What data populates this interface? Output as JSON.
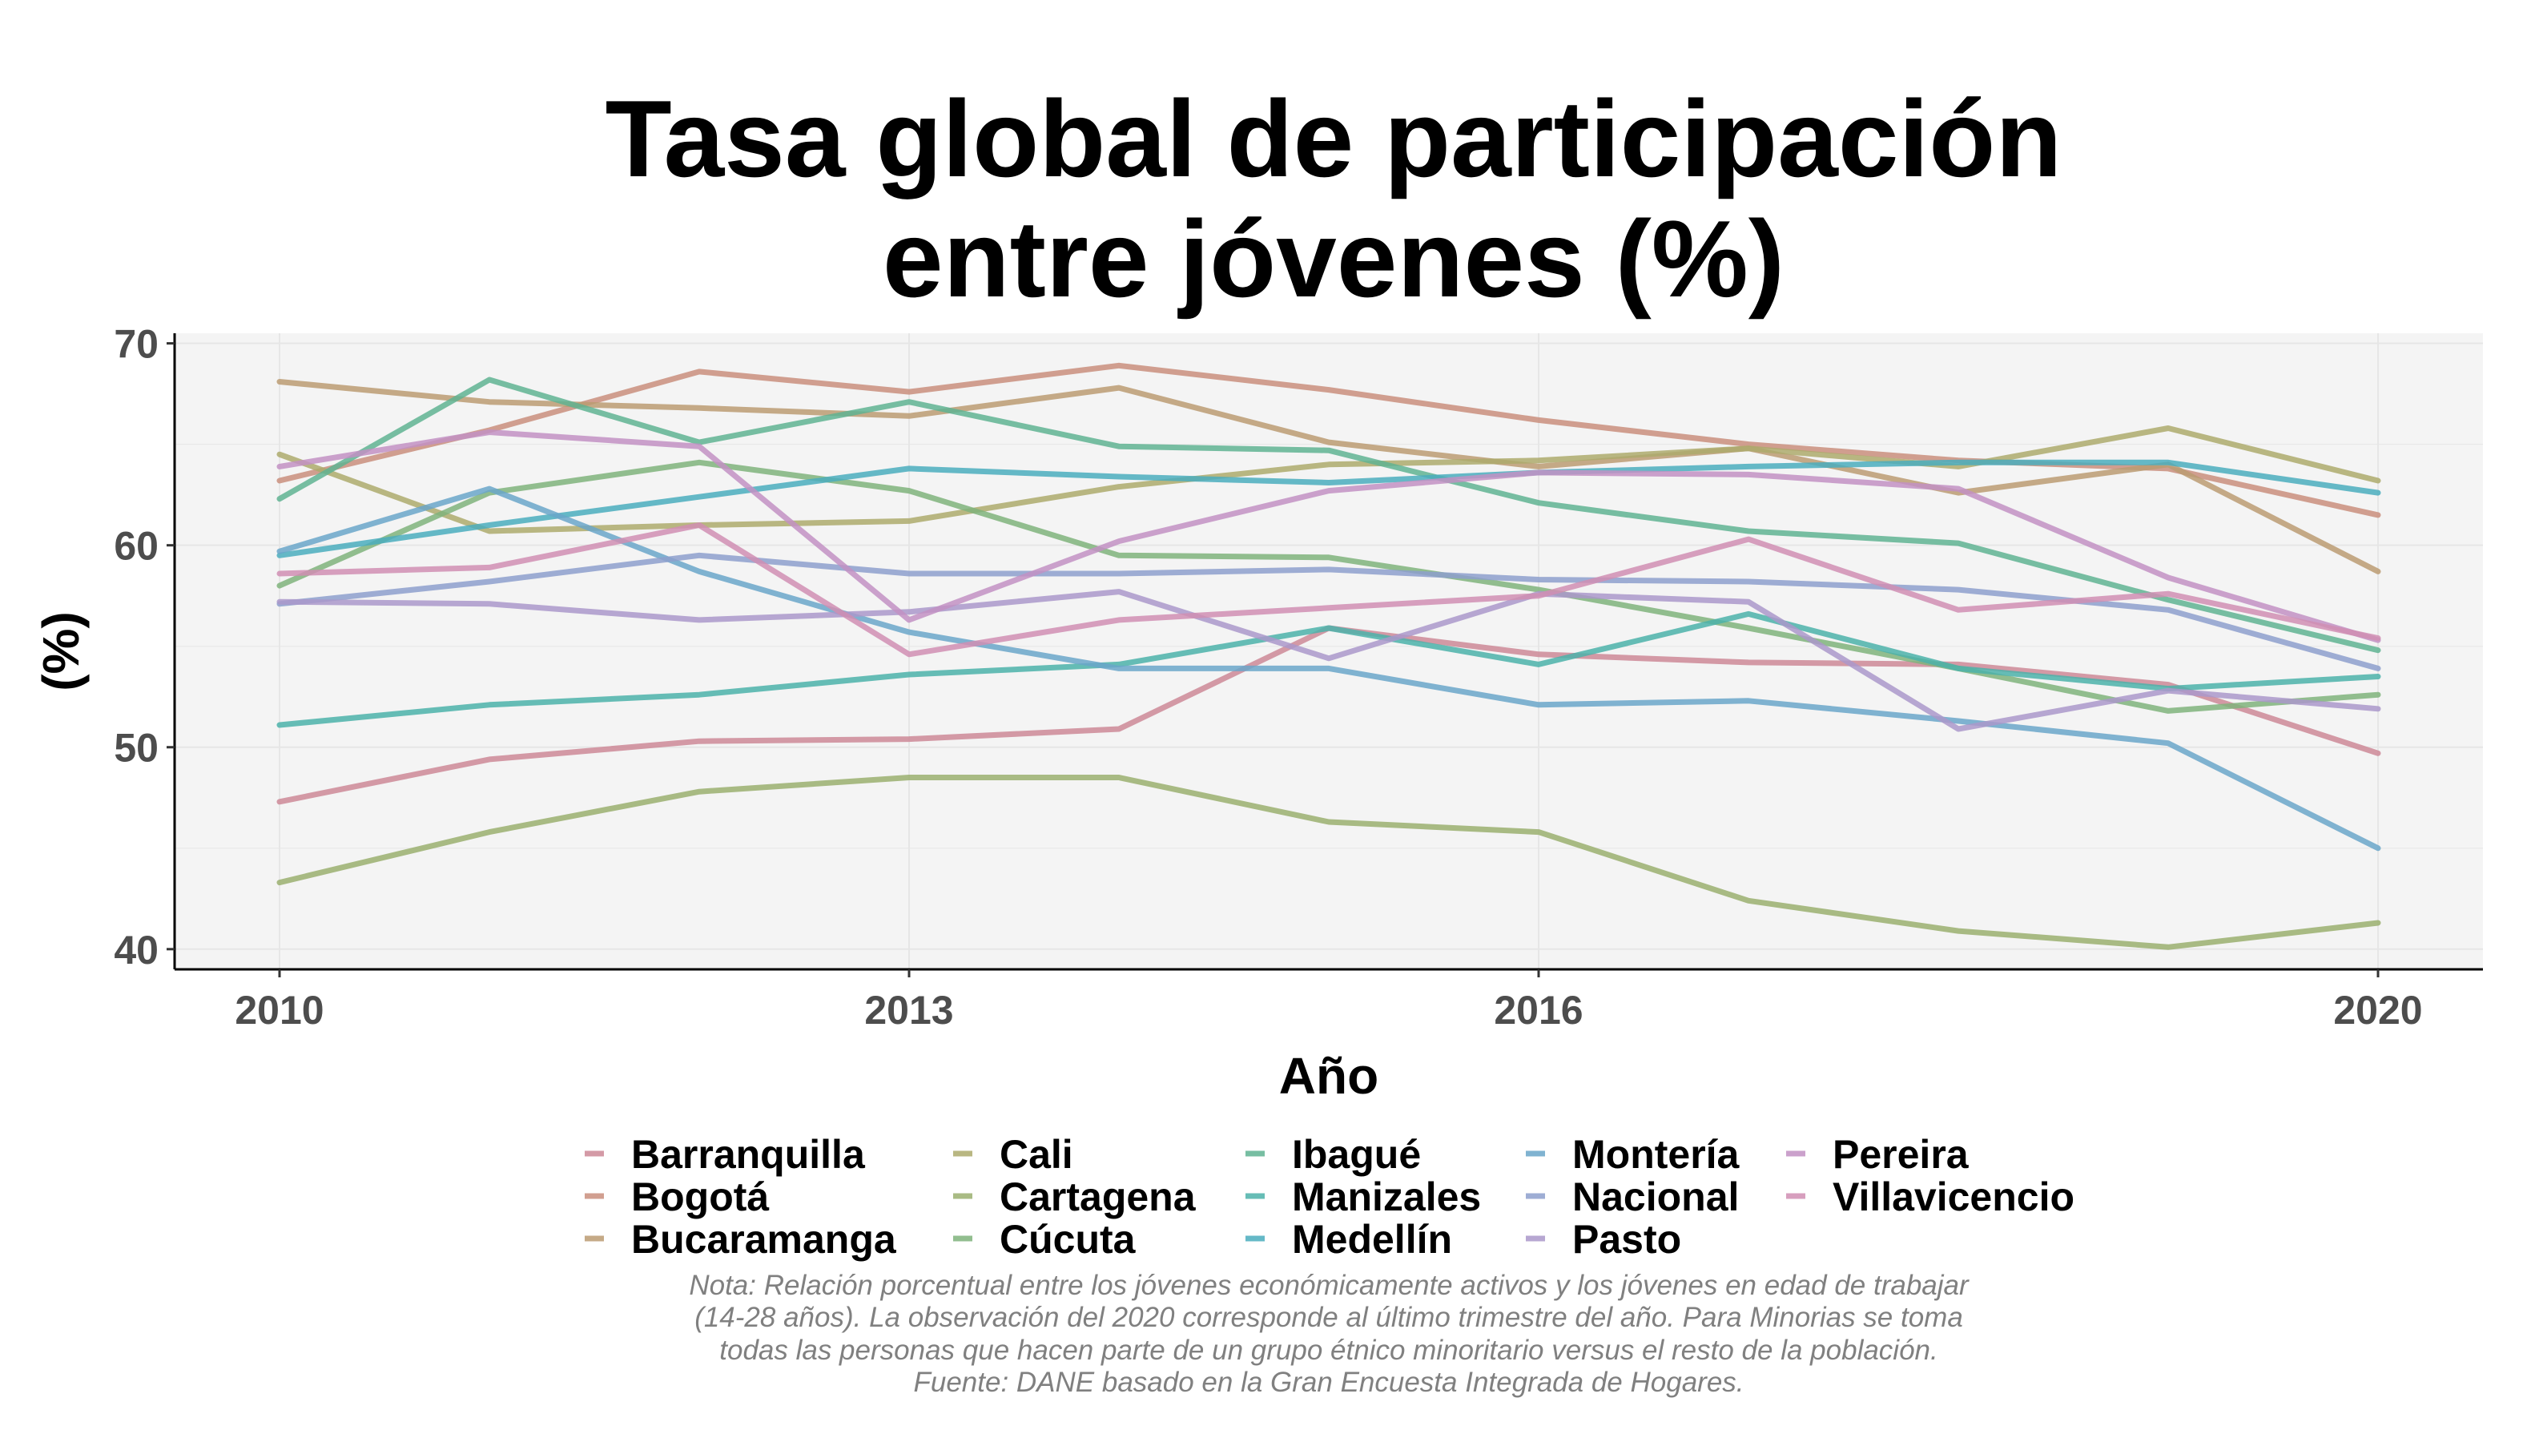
{
  "chart_data": {
    "type": "line",
    "title_lines": [
      "Tasa global de participación",
      "entre jóvenes (%)"
    ],
    "xlabel": "Año",
    "ylabel": "(%)",
    "xlim": [
      2009.5,
      2020.5
    ],
    "ylim": [
      39,
      70.5
    ],
    "x_ticks": [
      2010,
      2013,
      2016,
      2020
    ],
    "y_ticks": [
      40,
      50,
      60,
      70
    ],
    "x": [
      2010,
      2011,
      2012,
      2013,
      2014,
      2015,
      2016,
      2017,
      2018,
      2019,
      2020
    ],
    "grid": true,
    "legend_position": "bottom",
    "series": [
      {
        "name": "Barranquilla",
        "color": "#cc8896",
        "values": [
          47.3,
          49.4,
          50.3,
          50.4,
          50.9,
          55.9,
          54.6,
          54.2,
          54.1,
          53.1,
          49.7
        ]
      },
      {
        "name": "Bogotá",
        "color": "#c98e7c",
        "values": [
          63.2,
          65.7,
          68.6,
          67.6,
          68.9,
          67.7,
          66.2,
          65.0,
          64.2,
          63.8,
          61.5
        ]
      },
      {
        "name": "Bucaramanga",
        "color": "#bb9b72",
        "values": [
          68.1,
          67.1,
          66.8,
          66.4,
          67.8,
          65.1,
          63.9,
          64.8,
          62.6,
          64.0,
          58.7
        ]
      },
      {
        "name": "Cali",
        "color": "#adaa6c",
        "values": [
          64.5,
          60.7,
          61.0,
          61.2,
          62.9,
          64.0,
          64.2,
          64.8,
          63.9,
          65.8,
          63.2
        ]
      },
      {
        "name": "Cartagena",
        "color": "#9aaf6e",
        "values": [
          43.3,
          45.8,
          47.8,
          48.5,
          48.5,
          46.3,
          45.8,
          42.4,
          40.9,
          40.1,
          41.3
        ]
      },
      {
        "name": "Cúcuta",
        "color": "#7fb37b",
        "values": [
          58.0,
          62.6,
          64.1,
          62.7,
          59.5,
          59.4,
          57.8,
          55.9,
          53.9,
          51.8,
          52.6
        ]
      },
      {
        "name": "Ibagué",
        "color": "#5fb392",
        "values": [
          62.3,
          68.2,
          65.1,
          67.1,
          64.9,
          64.7,
          62.1,
          60.7,
          60.1,
          57.3,
          54.8
        ]
      },
      {
        "name": "Manizales",
        "color": "#4bb2a9",
        "values": [
          51.1,
          52.1,
          52.6,
          53.6,
          54.1,
          55.9,
          54.1,
          56.6,
          53.9,
          52.9,
          53.5
        ]
      },
      {
        "name": "Medellín",
        "color": "#4aadbd",
        "values": [
          59.5,
          61.0,
          62.4,
          63.8,
          63.4,
          63.1,
          63.6,
          63.9,
          64.1,
          64.1,
          62.6
        ]
      },
      {
        "name": "Montería",
        "color": "#6aa6c9",
        "values": [
          59.7,
          62.8,
          58.7,
          55.7,
          53.9,
          53.9,
          52.1,
          52.3,
          51.3,
          50.2,
          45.0
        ]
      },
      {
        "name": "Nacional",
        "color": "#8d9fcc",
        "values": [
          57.1,
          58.2,
          59.5,
          58.6,
          58.6,
          58.8,
          58.3,
          58.2,
          57.8,
          56.8,
          53.9
        ]
      },
      {
        "name": "Pasto",
        "color": "#aa98ca",
        "values": [
          57.2,
          57.1,
          56.3,
          56.7,
          57.7,
          54.4,
          57.6,
          57.2,
          50.9,
          52.8,
          51.9
        ]
      },
      {
        "name": "Pereira",
        "color": "#c291c3",
        "values": [
          63.9,
          65.6,
          64.9,
          56.3,
          60.2,
          62.7,
          63.6,
          63.5,
          62.8,
          58.4,
          55.3
        ]
      },
      {
        "name": "Villavicencio",
        "color": "#d08eb3",
        "values": [
          58.6,
          58.9,
          61.0,
          54.6,
          56.3,
          56.9,
          57.5,
          60.3,
          56.8,
          57.6,
          55.4
        ]
      }
    ],
    "caption_lines": [
      "Nota: Relación porcentual entre los jóvenes económicamente activos y los jóvenes en edad de trabajar",
      "(14-28 años). La observación del 2020 corresponde al último trimestre del año. Para Minorias se toma",
      "todas las personas que hacen parte de un grupo étnico minoritario versus el resto de la población.",
      "Fuente: DANE basado en la Gran Encuesta Integrada de Hogares."
    ]
  }
}
